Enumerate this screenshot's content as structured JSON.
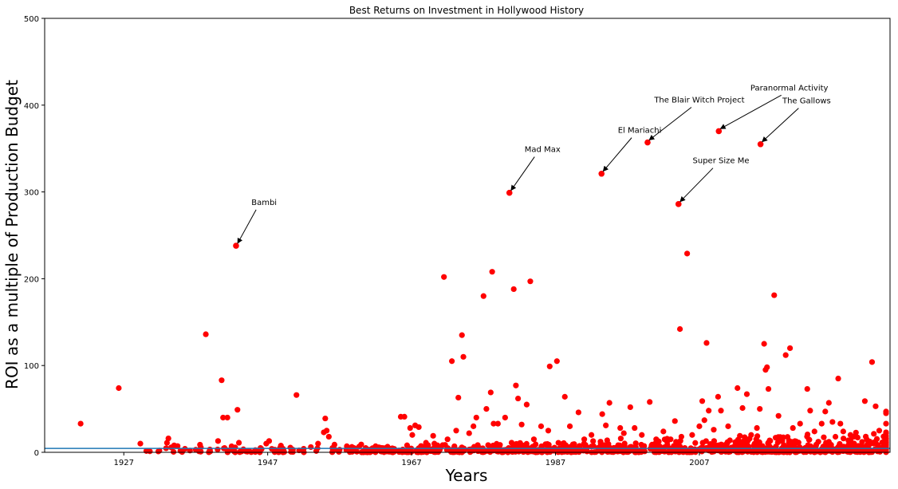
{
  "chart_data": {
    "type": "scatter",
    "title": "Best Returns on Investment in Hollywood History",
    "xlabel": "Years",
    "ylabel": "ROI as a multiple of Production Budget",
    "xlim": [
      1916,
      2033.5
    ],
    "ylim": [
      0,
      500
    ],
    "xticks": [
      1927,
      1947,
      1967,
      1987,
      2007
    ],
    "yticks": [
      0,
      100,
      200,
      300,
      400,
      500
    ],
    "grid": false,
    "legend": "none",
    "point_color": "#ff0000",
    "reference_line": {
      "y": 4.5,
      "color": "#1f77b4"
    },
    "annotations": [
      {
        "label": "Bambi",
        "x": 1942.6,
        "y": 238,
        "text_x": 1946.5,
        "text_y": 285
      },
      {
        "label": "Mad Max",
        "x": 1980.6,
        "y": 299,
        "text_x": 1985.2,
        "text_y": 346
      },
      {
        "label": "El Mariachi",
        "x": 1993.4,
        "y": 321,
        "text_x": 1998.7,
        "text_y": 368
      },
      {
        "label": "The Blair Witch Project",
        "x": 1999.8,
        "y": 357,
        "text_x": 2007.0,
        "text_y": 403
      },
      {
        "label": "Super Size Me",
        "x": 2004.1,
        "y": 286,
        "text_x": 2010.0,
        "text_y": 333
      },
      {
        "label": "Paranormal Activity",
        "x": 2009.7,
        "y": 370,
        "text_x": 2019.5,
        "text_y": 417
      },
      {
        "label": "The Gallows",
        "x": 2015.5,
        "y": 355,
        "text_x": 2021.9,
        "text_y": 402
      }
    ],
    "points": [
      [
        1921.0,
        33
      ],
      [
        1926.3,
        74
      ],
      [
        1929.3,
        10
      ],
      [
        1931.8,
        1
      ],
      [
        1933.0,
        11
      ],
      [
        1933.2,
        16
      ],
      [
        1934.0,
        8
      ],
      [
        1935.5,
        4
      ],
      [
        1936.2,
        2
      ],
      [
        1937.0,
        3
      ],
      [
        1938.4,
        136
      ],
      [
        1939.0,
        1
      ],
      [
        1940.1,
        13
      ],
      [
        1940.6,
        83
      ],
      [
        1940.8,
        40
      ],
      [
        1941.4,
        40
      ],
      [
        1941.0,
        5
      ],
      [
        1942.6,
        238
      ],
      [
        1942.8,
        49
      ],
      [
        1943.0,
        11
      ],
      [
        1944.0,
        1
      ],
      [
        1945.5,
        2
      ],
      [
        1946.0,
        5
      ],
      [
        1946.8,
        10
      ],
      [
        1947.2,
        13
      ],
      [
        1948.0,
        3
      ],
      [
        1949.0,
        1
      ],
      [
        1950.5,
        3
      ],
      [
        1951.0,
        66
      ],
      [
        1952.0,
        4
      ],
      [
        1953.0,
        6
      ],
      [
        1954.0,
        10
      ],
      [
        1954.8,
        23
      ],
      [
        1955.0,
        39
      ],
      [
        1955.2,
        25
      ],
      [
        1955.5,
        18
      ],
      [
        1956.0,
        5
      ],
      [
        1957.0,
        3
      ],
      [
        1958.0,
        7
      ],
      [
        1959.0,
        5
      ],
      [
        1960.0,
        9
      ],
      [
        1961.0,
        3
      ],
      [
        1962.0,
        7
      ],
      [
        1963.0,
        5
      ],
      [
        1964.0,
        4
      ],
      [
        1965.5,
        41
      ],
      [
        1966.0,
        41
      ],
      [
        1966.8,
        28
      ],
      [
        1967.1,
        20
      ],
      [
        1967.5,
        31
      ],
      [
        1968.0,
        29
      ],
      [
        1969.0,
        11
      ],
      [
        1970.0,
        19
      ],
      [
        1971.5,
        202
      ],
      [
        1972.0,
        15
      ],
      [
        1972.6,
        105
      ],
      [
        1973.2,
        25
      ],
      [
        1973.5,
        63
      ],
      [
        1974.2,
        110
      ],
      [
        1974.0,
        135
      ],
      [
        1975.0,
        22
      ],
      [
        1975.6,
        30
      ],
      [
        1976.0,
        40
      ],
      [
        1977.0,
        180
      ],
      [
        1977.4,
        50
      ],
      [
        1978.0,
        69
      ],
      [
        1978.2,
        208
      ],
      [
        1978.4,
        33
      ],
      [
        1979.0,
        33
      ],
      [
        1980.0,
        40
      ],
      [
        1981.2,
        188
      ],
      [
        1981.5,
        77
      ],
      [
        1981.8,
        62
      ],
      [
        1982.3,
        32
      ],
      [
        1983.0,
        55
      ],
      [
        1983.5,
        197
      ],
      [
        1984.0,
        15
      ],
      [
        1985.0,
        30
      ],
      [
        1986.2,
        99
      ],
      [
        1986.0,
        25
      ],
      [
        1987.2,
        105
      ],
      [
        1988.3,
        64
      ],
      [
        1989.0,
        30
      ],
      [
        1990.2,
        46
      ],
      [
        1991.0,
        15
      ],
      [
        1992.0,
        20
      ],
      [
        1993.5,
        44
      ],
      [
        1994.0,
        31
      ],
      [
        1994.5,
        57
      ],
      [
        1996.0,
        28
      ],
      [
        1996.5,
        22
      ],
      [
        1997.4,
        52
      ],
      [
        1998.0,
        28
      ],
      [
        1999.0,
        20
      ],
      [
        2000.1,
        58
      ],
      [
        2001.0,
        15
      ],
      [
        2002.0,
        24
      ],
      [
        2003.0,
        15
      ],
      [
        2003.6,
        36
      ],
      [
        2004.3,
        142
      ],
      [
        2004.5,
        18
      ],
      [
        2005.3,
        229
      ],
      [
        2006.0,
        20
      ],
      [
        2007.0,
        30
      ],
      [
        2007.4,
        59
      ],
      [
        2007.7,
        37
      ],
      [
        2008.0,
        126
      ],
      [
        2008.3,
        48
      ],
      [
        2009.0,
        26
      ],
      [
        2009.6,
        64
      ],
      [
        2010.0,
        48
      ],
      [
        2011.0,
        30
      ],
      [
        2012.3,
        74
      ],
      [
        2013.0,
        51
      ],
      [
        2013.6,
        67
      ],
      [
        2014.2,
        20
      ],
      [
        2015.0,
        28
      ],
      [
        2015.4,
        50
      ],
      [
        2016.0,
        125
      ],
      [
        2016.2,
        95
      ],
      [
        2016.4,
        98
      ],
      [
        2016.6,
        73
      ],
      [
        2017.4,
        181
      ],
      [
        2018.0,
        42
      ],
      [
        2019.0,
        112
      ],
      [
        2019.6,
        120
      ],
      [
        2020.0,
        28
      ],
      [
        2021.0,
        33
      ],
      [
        2022.0,
        73
      ],
      [
        2022.4,
        48
      ],
      [
        2023.0,
        24
      ],
      [
        2024.0,
        33
      ],
      [
        2024.5,
        47
      ],
      [
        2025.0,
        57
      ],
      [
        2025.5,
        35
      ],
      [
        2026.3,
        85
      ],
      [
        2026.6,
        33
      ],
      [
        2027.0,
        24
      ],
      [
        2028.0,
        20
      ],
      [
        2029.0,
        17
      ],
      [
        2030.0,
        59
      ],
      [
        2031.0,
        104
      ],
      [
        2031.5,
        53
      ],
      [
        2032.0,
        25
      ],
      [
        2033.0,
        33
      ],
      [
        2033.3,
        45
      ],
      [
        2033.6,
        47
      ],
      [
        2034.0,
        23
      ],
      [
        2035.0,
        22
      ],
      [
        2036.0,
        15
      ]
    ]
  }
}
